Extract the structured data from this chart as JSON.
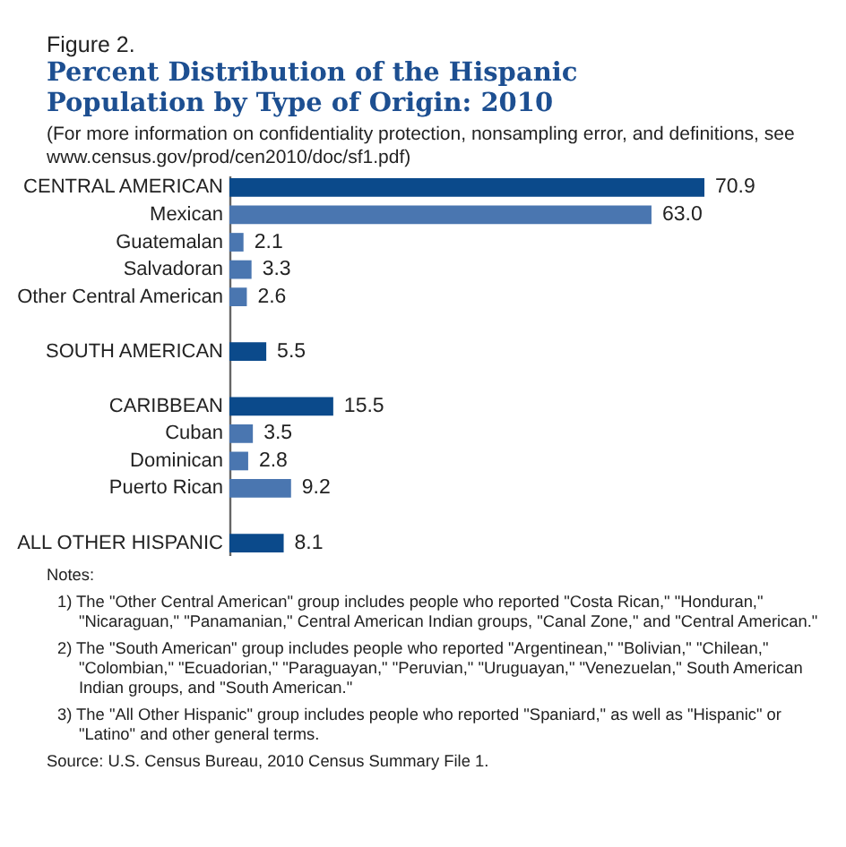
{
  "chart_data": {
    "type": "bar",
    "orientation": "horizontal",
    "title": "Percent Distribution of the Hispanic Population by Type of Origin: 2010",
    "subtitle": "(For more information on confidentiality protection, nonsampling error, and definitions, see www.census.gov/prod/cen2010/doc/sf1.pdf)",
    "categories": [
      "CENTRAL AMERICAN",
      "Mexican",
      "Guatemalan",
      "Salvadoran",
      "Other Central American",
      null,
      "SOUTH AMERICAN",
      null,
      "CARIBBEAN",
      "Cuban",
      "Dominican",
      "Puerto Rican",
      null,
      "ALL OTHER HISPANIC"
    ],
    "values": [
      70.9,
      63.0,
      2.1,
      3.3,
      2.6,
      null,
      5.5,
      null,
      15.5,
      3.5,
      2.8,
      9.2,
      null,
      8.1
    ],
    "value_labels": [
      "70.9",
      "63.0",
      "2.1",
      "3.3",
      "2.6",
      null,
      "5.5",
      null,
      "15.5",
      "3.5",
      "2.8",
      "9.2",
      null,
      "8.1"
    ],
    "colors": [
      "#0b4a8b",
      "#4a76b0",
      "#4a76b0",
      "#4a76b0",
      "#4a76b0",
      null,
      "#0b4a8b",
      null,
      "#0b4a8b",
      "#4a76b0",
      "#4a76b0",
      "#4a76b0",
      null,
      "#0b4a8b"
    ],
    "annotations": [
      "Figure 2.",
      "Notes:",
      "1) The \"Other Central American\" group includes people who reported \"Costa Rican,\" \"Honduran,\" \"Nicaraguan,\" \"Panamanian,\" Central American Indian groups, \"Canal Zone,\" and \"Central American.\"",
      "2) The \"South American\" group includes people who reported \"Argentinean,\" \"Bolivian,\" \"Chilean,\" \"Colombian,\" \"Ecuadorian,\" \"Paraguayan,\" \"Peruvian,\" \"Uruguayan,\" \"Venezuelan,\" South American Indian groups, and \"South American.\"",
      "3) The \"All Other Hispanic\" group includes people who reported \"Spaniard,\" as well as \"Hispanic\" or \"Latino\" and other general terms.",
      "Source: U.S. Census Bureau, 2010 Census Summary File 1."
    ]
  }
}
